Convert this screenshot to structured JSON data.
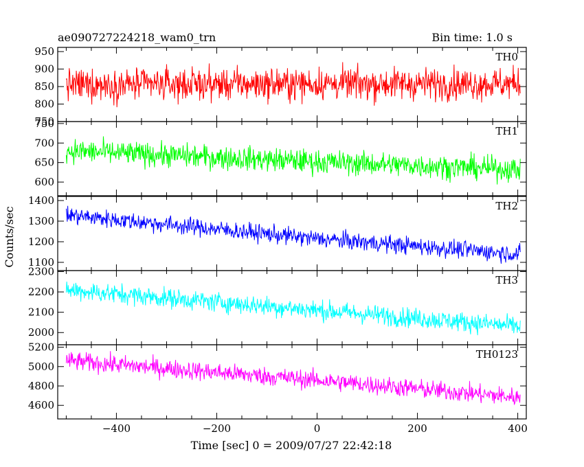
{
  "header": {
    "left_title": "ae090727224218_wam0_trn",
    "right_title": "Bin time: 1.0 s"
  },
  "chart_data": {
    "type": "line",
    "xlabel": "Time [sec] 0 = 2009/07/27 22:42:18",
    "ylabel": "Counts/sec",
    "xlim": [
      -517,
      417
    ],
    "xticks": [
      -400,
      -200,
      0,
      200,
      400
    ],
    "x_tick_labels": [
      "−400",
      "−200",
      "0",
      "200",
      "400"
    ],
    "data_x_range": [
      -500,
      405
    ],
    "bin_time_s": 1.0,
    "panels": [
      {
        "name": "TH0",
        "color": "#ff0000",
        "ylim": [
          750,
          962
        ],
        "yticks": [
          750,
          800,
          850,
          900,
          950
        ],
        "trend": [
          [
            -500,
            855
          ],
          [
            0,
            858
          ],
          [
            405,
            858
          ]
        ],
        "noise_amplitude": 45
      },
      {
        "name": "TH1",
        "color": "#00ff00",
        "ylim": [
          565,
          755
        ],
        "yticks": [
          600,
          650,
          700,
          750
        ],
        "trend": [
          [
            -500,
            680
          ],
          [
            0,
            652
          ],
          [
            405,
            632
          ]
        ],
        "noise_amplitude": 30
      },
      {
        "name": "TH2",
        "color": "#0000ff",
        "ylim": [
          1060,
          1420
        ],
        "yticks": [
          1100,
          1200,
          1300,
          1400
        ],
        "trend": [
          [
            -500,
            1330
          ],
          [
            0,
            1215
          ],
          [
            405,
            1140
          ]
        ],
        "noise_amplitude": 42
      },
      {
        "name": "TH3",
        "color": "#00ffff",
        "ylim": [
          1940,
          2305
        ],
        "yticks": [
          2000,
          2100,
          2200,
          2300
        ],
        "trend": [
          [
            -500,
            2210
          ],
          [
            0,
            2110
          ],
          [
            405,
            2030
          ]
        ],
        "noise_amplitude": 48
      },
      {
        "name": "TH0123",
        "color": "#ff00ff",
        "ylim": [
          4460,
          5225
        ],
        "yticks": [
          4600,
          4800,
          5000,
          5200
        ],
        "trend": [
          [
            -500,
            5060
          ],
          [
            0,
            4860
          ],
          [
            405,
            4680
          ]
        ],
        "noise_amplitude": 95
      }
    ]
  }
}
